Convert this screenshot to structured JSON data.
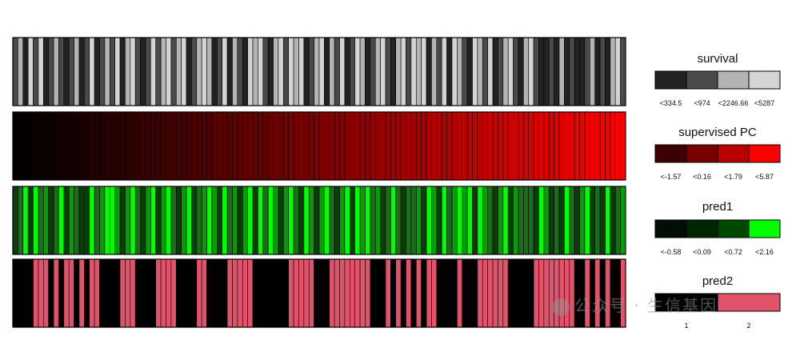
{
  "chart_data": {
    "type": "heatmap",
    "n_samples": 120,
    "tracks": [
      {
        "name": "survival",
        "palette": [
          "#222222",
          "#4a4a4a",
          "#b4b4b4",
          "#d4d4d4"
        ],
        "legend_labels": [
          "<334.5",
          "<974",
          "<2246.66",
          "<5287"
        ],
        "values": [
          1,
          2,
          0,
          3,
          1,
          3,
          0,
          1,
          2,
          1,
          0,
          1,
          2,
          0,
          1,
          3,
          0,
          1,
          2,
          1,
          3,
          0,
          2,
          3,
          1,
          0,
          1,
          3,
          1,
          2,
          3,
          1,
          2,
          3,
          0,
          1,
          2,
          3,
          2,
          0,
          1,
          3,
          0,
          2,
          1,
          0,
          3,
          2,
          3,
          1,
          0,
          2,
          3,
          1,
          3,
          2,
          3,
          0,
          1,
          2,
          3,
          0,
          2,
          1,
          3,
          0,
          1,
          3,
          2,
          0,
          1,
          2,
          3,
          1,
          0,
          2,
          3,
          1,
          3,
          2,
          3,
          0,
          2,
          1,
          3,
          0,
          3,
          2,
          1,
          0,
          3,
          2,
          1,
          3,
          0,
          1,
          2,
          3,
          1,
          0,
          2,
          3,
          1,
          0,
          0,
          1,
          0,
          2,
          0,
          1,
          0,
          0,
          1,
          2,
          0,
          1,
          0,
          2,
          3,
          1
        ]
      },
      {
        "name": "supervised PC",
        "palette_type": "gradient",
        "from_color": "#000000",
        "to_color": "#ff0000",
        "legend_palette": [
          "#3c0000",
          "#7a0000",
          "#b80000",
          "#ff0000"
        ],
        "legend_labels": [
          "<-1.57",
          "<0.16",
          "<1.79",
          "<5.87"
        ]
      },
      {
        "name": "pred1",
        "palette": [
          "#030d03",
          "#002600",
          "#004800",
          "#00ff00"
        ],
        "bar_palette": [
          "#1e6b1e",
          "#0b3d0b",
          "#0a9a0a",
          "#00ff00"
        ],
        "legend_labels": [
          "<-0.58",
          "<0.09",
          "<0.72",
          "<2.16"
        ],
        "values": [
          1,
          0,
          3,
          1,
          3,
          0,
          2,
          1,
          0,
          3,
          1,
          2,
          0,
          1,
          1,
          3,
          0,
          2,
          3,
          3,
          2,
          1,
          2,
          3,
          0,
          1,
          2,
          3,
          1,
          2,
          3,
          0,
          1,
          2,
          3,
          1,
          0,
          2,
          3,
          2,
          1,
          3,
          0,
          2,
          1,
          2,
          3,
          1,
          3,
          0,
          3,
          2,
          1,
          2,
          3,
          0,
          1,
          3,
          2,
          1,
          2,
          3,
          0,
          1,
          2,
          3,
          1,
          3,
          2,
          3,
          0,
          2,
          1,
          0,
          3,
          0,
          1,
          0,
          0,
          2,
          1,
          3,
          2,
          1,
          3,
          0,
          2,
          3,
          2,
          3,
          1,
          3,
          2,
          0,
          1,
          2,
          3,
          1,
          2,
          0,
          0,
          0,
          1,
          3,
          2,
          1,
          0,
          1,
          3,
          0,
          1,
          2,
          3,
          1,
          0,
          1,
          3,
          1,
          0,
          2
        ]
      },
      {
        "name": "pred2",
        "palette": [
          "#000000",
          "#df536b"
        ],
        "legend_labels": [
          "1",
          "2"
        ],
        "values": [
          0,
          0,
          0,
          0,
          1,
          1,
          1,
          0,
          1,
          0,
          1,
          1,
          0,
          1,
          0,
          1,
          1,
          0,
          0,
          0,
          0,
          1,
          1,
          1,
          0,
          0,
          0,
          0,
          1,
          1,
          1,
          1,
          0,
          0,
          0,
          0,
          1,
          1,
          0,
          0,
          0,
          0,
          1,
          1,
          1,
          1,
          1,
          0,
          0,
          0,
          0,
          0,
          0,
          0,
          1,
          1,
          1,
          1,
          1,
          0,
          0,
          0,
          1,
          1,
          1,
          1,
          1,
          1,
          1,
          1,
          0,
          0,
          0,
          1,
          0,
          1,
          0,
          1,
          0,
          1,
          0,
          1,
          1,
          0,
          0,
          0,
          0,
          1,
          0,
          0,
          0,
          1,
          1,
          1,
          1,
          1,
          1,
          0,
          0,
          0,
          0,
          0,
          1,
          1,
          1,
          1,
          1,
          1,
          1,
          1,
          0,
          0,
          1,
          0,
          1,
          0,
          1,
          0,
          0,
          1
        ]
      }
    ]
  },
  "watermark": {
    "text": "公众号 · 生信基因"
  }
}
